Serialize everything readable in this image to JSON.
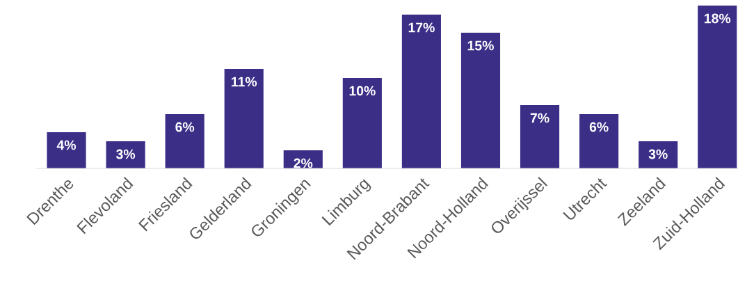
{
  "chart_data": {
    "type": "bar",
    "categories": [
      "Drenthe",
      "Flevoland",
      "Friesland",
      "Gelderland",
      "Groningen",
      "Limburg",
      "Noord-Brabant",
      "Noord-Holland",
      "Overijssel",
      "Utrecht",
      "Zeeland",
      "Zuid-Holland"
    ],
    "values": [
      4,
      3,
      6,
      11,
      2,
      10,
      17,
      15,
      7,
      6,
      3,
      18
    ],
    "value_labels": [
      "4%",
      "3%",
      "6%",
      "11%",
      "2%",
      "10%",
      "17%",
      "15%",
      "7%",
      "6%",
      "3%",
      "18%"
    ],
    "color": "#3b2e87",
    "grid": false,
    "legend": false
  }
}
